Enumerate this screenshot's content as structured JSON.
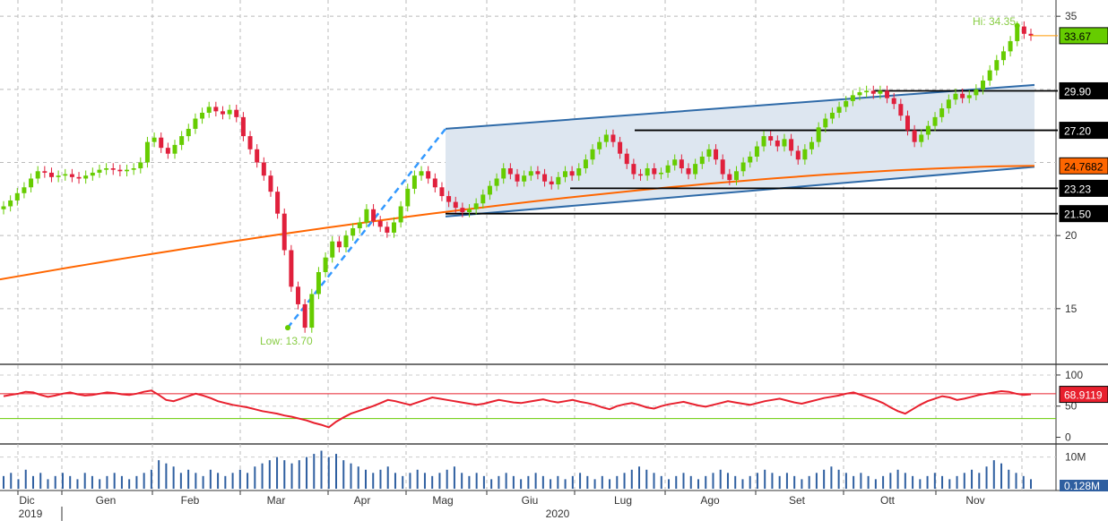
{
  "chart_data": {
    "type": "candlestick",
    "panels": [
      "price",
      "rsi",
      "volume"
    ],
    "x_axis": {
      "months": [
        "Dic",
        "Gen",
        "Feb",
        "Mar",
        "Apr",
        "Mag",
        "Giu",
        "Lug",
        "Ago",
        "Set",
        "Ott",
        "Nov"
      ],
      "years": [
        "2019",
        "2020"
      ]
    },
    "price": {
      "ylim": [
        11.5,
        35.5
      ],
      "yticks": [
        15,
        20,
        35
      ],
      "series_daily_close": [
        22.0,
        22.4,
        22.9,
        23.3,
        23.9,
        24.4,
        24.3,
        24.0,
        24.1,
        24.2,
        24.0,
        23.9,
        24.1,
        24.3,
        24.5,
        24.6,
        24.5,
        24.4,
        24.5,
        24.6,
        25.0,
        26.4,
        26.7,
        26.0,
        25.6,
        26.2,
        26.8,
        27.3,
        28.0,
        28.4,
        28.8,
        28.5,
        28.3,
        28.6,
        28.1,
        26.8,
        25.9,
        25.0,
        24.1,
        23.0,
        21.5,
        19.0,
        16.5,
        15.3,
        13.7,
        16.0,
        17.5,
        18.5,
        19.6,
        19.2,
        20.0,
        20.5,
        20.9,
        21.8,
        21.0,
        20.6,
        20.2,
        20.9,
        22.0,
        23.2,
        24.1,
        24.4,
        23.9,
        23.3,
        22.7,
        22.3,
        21.9,
        21.6,
        21.8,
        22.2,
        22.8,
        23.4,
        23.9,
        24.6,
        24.2,
        23.7,
        24.1,
        24.4,
        24.2,
        23.7,
        23.5,
        24.0,
        24.4,
        24.1,
        24.6,
        25.2,
        25.9,
        26.4,
        26.9,
        26.4,
        25.6,
        24.9,
        24.2,
        24.1,
        24.6,
        24.2,
        24.3,
        24.8,
        25.2,
        24.6,
        24.2,
        24.9,
        25.4,
        25.9,
        25.2,
        24.2,
        23.8,
        24.4,
        25.0,
        25.4,
        26.1,
        26.8,
        26.5,
        26.1,
        26.6,
        25.8,
        25.2,
        25.9,
        26.4,
        27.4,
        28.0,
        28.4,
        28.8,
        29.2,
        29.6,
        29.8,
        29.9,
        29.7,
        29.9,
        29.4,
        29.0,
        28.2,
        27.2,
        26.4,
        26.9,
        27.5,
        28.1,
        28.7,
        29.3,
        29.7,
        29.4,
        29.6,
        30.0,
        30.6,
        31.3,
        32.0,
        32.6,
        33.3,
        34.3,
        33.8,
        33.67
      ],
      "ma_200": [
        17.0,
        24.7682
      ],
      "channel": {
        "upper": [
          27.3,
          30.3
        ],
        "lower": [
          21.3,
          24.7
        ]
      },
      "horizontal_levels": [
        {
          "value": 29.9,
          "label": "29.90"
        },
        {
          "value": 27.2,
          "label": "27.20"
        },
        {
          "value": 23.23,
          "label": "23.23"
        },
        {
          "value": 21.5,
          "label": "21.50"
        }
      ],
      "last_price": {
        "value": 33.67,
        "label": "33.67",
        "color": "#66cc00"
      },
      "ma_label": {
        "value": 24.7682,
        "label": "24.7682",
        "color": "#ff6600"
      },
      "annotations": {
        "high": "Hi: 34.35",
        "low": "Low: 13.70"
      }
    },
    "rsi": {
      "ylim": [
        -5,
        110
      ],
      "yticks": [
        0,
        50,
        100
      ],
      "overbought": 70,
      "oversold": 30,
      "last": {
        "value": 68.9119,
        "label": "68.9119"
      },
      "series": [
        66,
        68,
        70,
        73,
        72,
        68,
        65,
        67,
        70,
        72,
        69,
        67,
        68,
        70,
        72,
        71,
        69,
        68,
        70,
        73,
        75,
        68,
        60,
        58,
        62,
        66,
        70,
        67,
        63,
        58,
        55,
        52,
        50,
        48,
        45,
        42,
        40,
        38,
        35,
        33,
        30,
        27,
        23,
        20,
        16,
        25,
        32,
        38,
        42,
        46,
        50,
        55,
        60,
        58,
        55,
        52,
        56,
        60,
        64,
        62,
        60,
        58,
        56,
        54,
        52,
        54,
        57,
        60,
        58,
        56,
        55,
        57,
        59,
        61,
        58,
        56,
        58,
        60,
        57,
        55,
        52,
        48,
        45,
        50,
        53,
        55,
        52,
        48,
        46,
        50,
        53,
        55,
        57,
        54,
        51,
        49,
        52,
        55,
        58,
        56,
        54,
        52,
        55,
        58,
        60,
        62,
        59,
        56,
        54,
        57,
        60,
        63,
        65,
        67,
        70,
        72,
        68,
        64,
        60,
        55,
        48,
        42,
        38,
        45,
        52,
        58,
        62,
        66,
        64,
        60,
        62,
        65,
        68,
        70,
        72,
        74,
        73,
        70,
        68,
        69
      ]
    },
    "volume": {
      "ylim": [
        0,
        13
      ],
      "ytick_label": "10M",
      "last": {
        "value": 0.128,
        "label": "0.128M"
      },
      "series": [
        4,
        5,
        3,
        6,
        4,
        5,
        3,
        4,
        5,
        4,
        3,
        5,
        4,
        3,
        4,
        5,
        4,
        3,
        4,
        5,
        6,
        9,
        8,
        7,
        5,
        6,
        5,
        4,
        6,
        5,
        4,
        5,
        6,
        5,
        7,
        8,
        9,
        10,
        9,
        8,
        9,
        10,
        11,
        12,
        10,
        11,
        9,
        8,
        7,
        6,
        5,
        6,
        7,
        5,
        4,
        5,
        6,
        5,
        4,
        5,
        6,
        7,
        5,
        4,
        5,
        4,
        3,
        4,
        5,
        4,
        3,
        4,
        5,
        4,
        3,
        4,
        3,
        4,
        5,
        4,
        3,
        4,
        3,
        4,
        5,
        6,
        7,
        6,
        5,
        4,
        3,
        4,
        5,
        4,
        3,
        4,
        5,
        6,
        5,
        4,
        3,
        4,
        5,
        6,
        5,
        4,
        5,
        4,
        3,
        4,
        5,
        6,
        7,
        6,
        5,
        4,
        5,
        4,
        3,
        4,
        5,
        6,
        5,
        4,
        3,
        4,
        5,
        4,
        3,
        4,
        5,
        6,
        5,
        7,
        9,
        8,
        6,
        5,
        4,
        3
      ]
    },
    "colors": {
      "up": "#66cc00",
      "down": "#e0203c",
      "channel_fill": "#dde6f0",
      "channel_line": "#2e6aa8",
      "ma_line": "#ff6600",
      "rsi_line": "#e8202e",
      "rsi_overbought": "#e8202e",
      "rsi_oversold": "#66cc00",
      "volume_bar": "#2f5fa0",
      "dashed_trend": "#3399ff",
      "annotation_text": "#88cc44"
    }
  }
}
